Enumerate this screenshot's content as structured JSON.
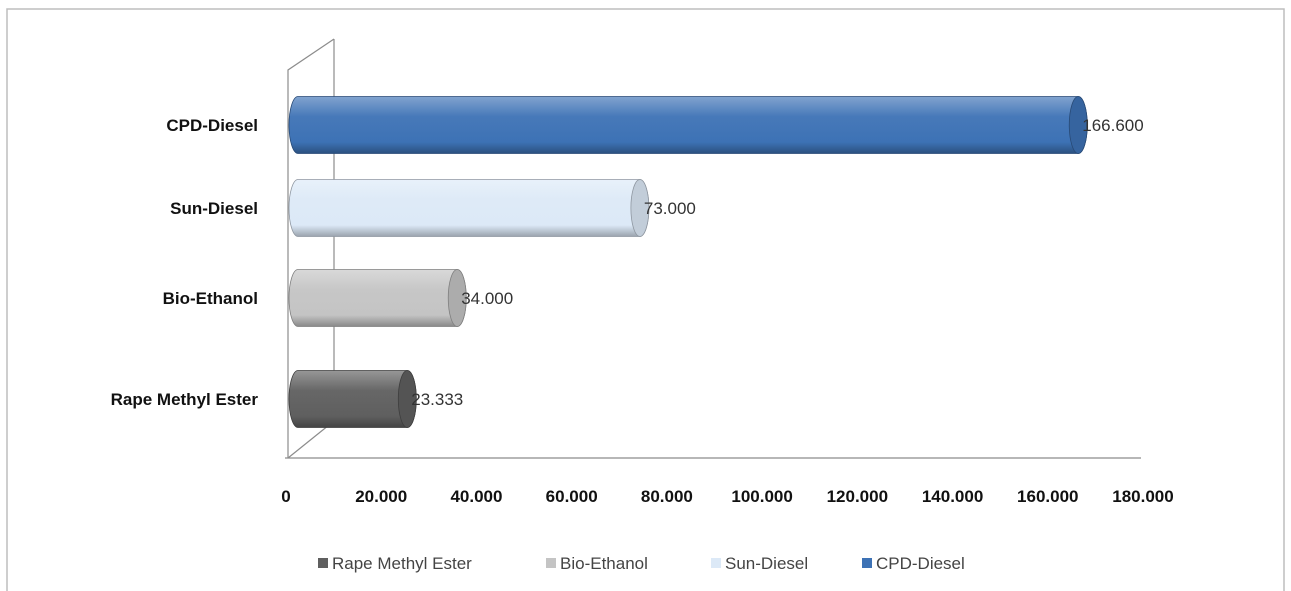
{
  "chart_data": {
    "type": "bar",
    "orientation": "horizontal",
    "style": "3d-cylinder",
    "categories": [
      "Rape Methyl Ester",
      "Bio-Ethanol",
      "Sun-Diesel",
      "CPD-Diesel"
    ],
    "values": [
      23.333,
      34.0,
      73.0,
      166.6
    ],
    "value_labels": [
      "23.333",
      "34.000",
      "73.000",
      "166.600"
    ],
    "x_ticks": [
      0,
      20,
      40,
      60,
      80,
      100,
      120,
      140,
      160,
      180
    ],
    "x_tick_labels": [
      "0",
      "20.000",
      "40.000",
      "60.000",
      "80.000",
      "100.000",
      "120.000",
      "140.000",
      "160.000",
      "180.000"
    ],
    "xlim": [
      0,
      180
    ],
    "title": "",
    "xlabel": "",
    "ylabel": "",
    "grid": false,
    "legend": {
      "placement": "bottom",
      "entries": [
        "Rape Methyl Ester",
        "Bio-Ethanol",
        "Sun-Diesel",
        "CPD-Diesel"
      ]
    },
    "colors": {
      "Rape Methyl Ester": "#5f5f5f",
      "Bio-Ethanol": "#c4c4c4",
      "Sun-Diesel": "#dce9f7",
      "CPD-Diesel": "#3d72b5"
    }
  }
}
